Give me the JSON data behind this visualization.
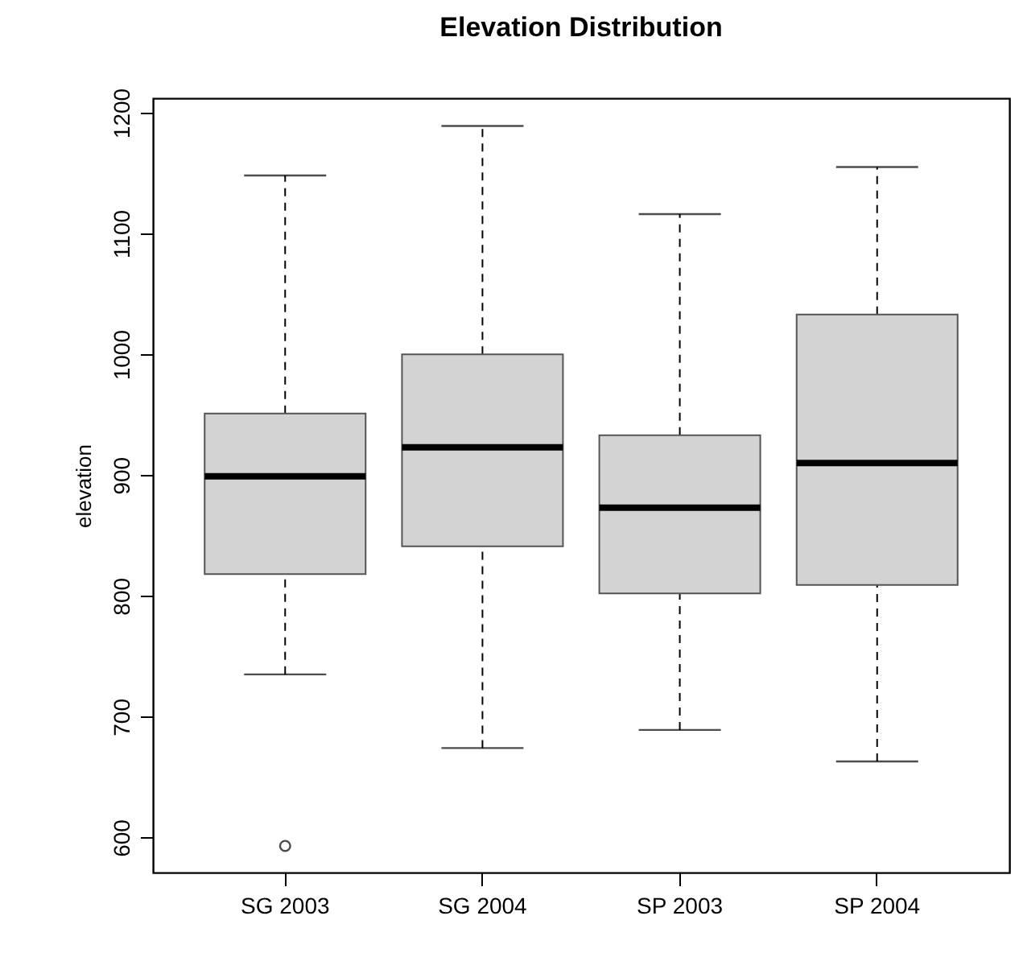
{
  "chart_data": {
    "type": "box",
    "title": "Elevation Distribution",
    "ylabel": "elevation",
    "categories": [
      "SG 2003",
      "SG 2004",
      "SP 2003",
      "SP 2004"
    ],
    "boxes": [
      {
        "low": 735,
        "q1": 818,
        "median": 899,
        "q3": 951,
        "high": 1148,
        "outliers": [
          593
        ]
      },
      {
        "low": 674,
        "q1": 841,
        "median": 923,
        "q3": 1000,
        "high": 1189
      },
      {
        "low": 689,
        "q1": 802,
        "median": 873,
        "q3": 933,
        "high": 1116
      },
      {
        "low": 663,
        "q1": 809,
        "median": 910,
        "q3": 1033,
        "high": 1155
      }
    ],
    "color": "#d3d3d3",
    "ylim": [
      571,
      1212
    ],
    "yticks": [
      600,
      700,
      800,
      900,
      1000,
      1100,
      1200
    ],
    "grid": false
  }
}
